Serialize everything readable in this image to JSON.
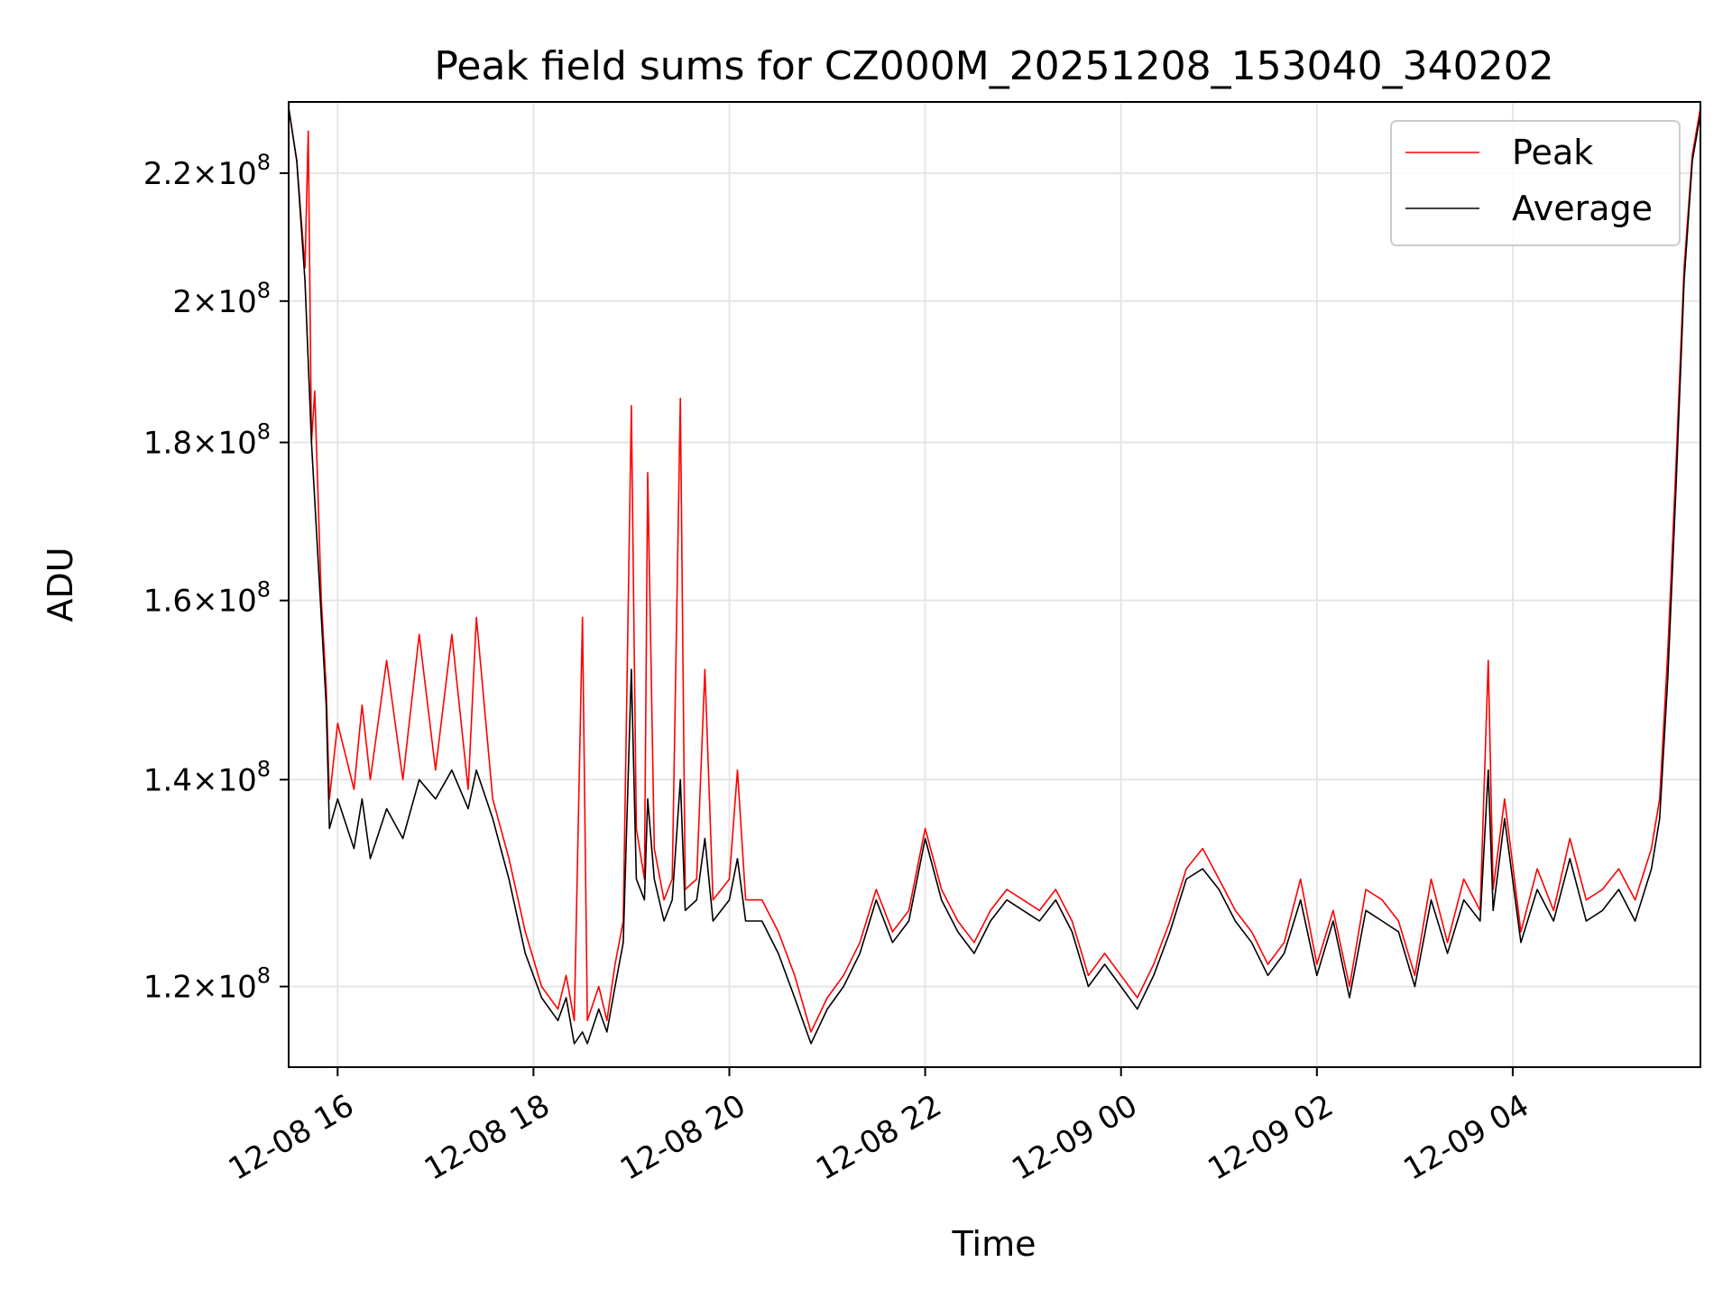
{
  "chart_data": {
    "type": "line",
    "title": "Peak field sums for CZ000M_20251208_153040_340202",
    "xlabel": "Time",
    "ylabel": "ADU",
    "yscale": "log",
    "ylim": [
      113000000,
      232000000
    ],
    "xlim": [
      "2025-12-08 15:30",
      "2025-12-09 05:55"
    ],
    "grid": true,
    "legend_position": "upper right",
    "x_ticks": [
      {
        "t": "2025-12-08 16:00",
        "label": "12-08 16"
      },
      {
        "t": "2025-12-08 18:00",
        "label": "12-08 18"
      },
      {
        "t": "2025-12-08 20:00",
        "label": "12-08 20"
      },
      {
        "t": "2025-12-08 22:00",
        "label": "12-08 22"
      },
      {
        "t": "2025-12-09 00:00",
        "label": "12-09 00"
      },
      {
        "t": "2025-12-09 02:00",
        "label": "12-09 02"
      },
      {
        "t": "2025-12-09 04:00",
        "label": "12-09 04"
      }
    ],
    "y_ticks": [
      {
        "value": 120000000,
        "mant": "1.2",
        "exp": "8"
      },
      {
        "value": 140000000,
        "mant": "1.4",
        "exp": "8"
      },
      {
        "value": 160000000,
        "mant": "1.6",
        "exp": "8"
      },
      {
        "value": 180000000,
        "mant": "1.8",
        "exp": "8"
      },
      {
        "value": 200000000,
        "mant": "2",
        "exp": "8"
      },
      {
        "value": 220000000,
        "mant": "2.2",
        "exp": "8"
      }
    ],
    "series": [
      {
        "name": "Peak",
        "color": "#ff0000",
        "points": [
          [
            "2025-12-08 15:30",
            231000000
          ],
          [
            "2025-12-08 15:35",
            222000000
          ],
          [
            "2025-12-08 15:40",
            205000000
          ],
          [
            "2025-12-08 15:42",
            227000000
          ],
          [
            "2025-12-08 15:44",
            180000000
          ],
          [
            "2025-12-08 15:46",
            187000000
          ],
          [
            "2025-12-08 15:50",
            160000000
          ],
          [
            "2025-12-08 15:53",
            150000000
          ],
          [
            "2025-12-08 15:55",
            138000000
          ],
          [
            "2025-12-08 16:00",
            146000000
          ],
          [
            "2025-12-08 16:10",
            139000000
          ],
          [
            "2025-12-08 16:15",
            148000000
          ],
          [
            "2025-12-08 16:20",
            140000000
          ],
          [
            "2025-12-08 16:30",
            153000000
          ],
          [
            "2025-12-08 16:40",
            140000000
          ],
          [
            "2025-12-08 16:50",
            156000000
          ],
          [
            "2025-12-08 17:00",
            141000000
          ],
          [
            "2025-12-08 17:10",
            156000000
          ],
          [
            "2025-12-08 17:20",
            139000000
          ],
          [
            "2025-12-08 17:25",
            158000000
          ],
          [
            "2025-12-08 17:35",
            138000000
          ],
          [
            "2025-12-08 17:45",
            132000000
          ],
          [
            "2025-12-08 17:55",
            125000000
          ],
          [
            "2025-12-08 18:05",
            120000000
          ],
          [
            "2025-12-08 18:15",
            118000000
          ],
          [
            "2025-12-08 18:20",
            121000000
          ],
          [
            "2025-12-08 18:25",
            117000000
          ],
          [
            "2025-12-08 18:30",
            158000000
          ],
          [
            "2025-12-08 18:33",
            117000000
          ],
          [
            "2025-12-08 18:40",
            120000000
          ],
          [
            "2025-12-08 18:45",
            117000000
          ],
          [
            "2025-12-08 18:50",
            122000000
          ],
          [
            "2025-12-08 18:55",
            126000000
          ],
          [
            "2025-12-08 19:00",
            185000000
          ],
          [
            "2025-12-08 19:03",
            135000000
          ],
          [
            "2025-12-08 19:08",
            130000000
          ],
          [
            "2025-12-08 19:10",
            176000000
          ],
          [
            "2025-12-08 19:14",
            133000000
          ],
          [
            "2025-12-08 19:20",
            128000000
          ],
          [
            "2025-12-08 19:25",
            130000000
          ],
          [
            "2025-12-08 19:30",
            186000000
          ],
          [
            "2025-12-08 19:33",
            129000000
          ],
          [
            "2025-12-08 19:40",
            130000000
          ],
          [
            "2025-12-08 19:45",
            152000000
          ],
          [
            "2025-12-08 19:50",
            128000000
          ],
          [
            "2025-12-08 20:00",
            130000000
          ],
          [
            "2025-12-08 20:05",
            141000000
          ],
          [
            "2025-12-08 20:10",
            128000000
          ],
          [
            "2025-12-08 20:20",
            128000000
          ],
          [
            "2025-12-08 20:30",
            125000000
          ],
          [
            "2025-12-08 20:40",
            121000000
          ],
          [
            "2025-12-08 20:50",
            116000000
          ],
          [
            "2025-12-08 21:00",
            119000000
          ],
          [
            "2025-12-08 21:10",
            121000000
          ],
          [
            "2025-12-08 21:20",
            124000000
          ],
          [
            "2025-12-08 21:30",
            129000000
          ],
          [
            "2025-12-08 21:40",
            125000000
          ],
          [
            "2025-12-08 21:50",
            127000000
          ],
          [
            "2025-12-08 22:00",
            135000000
          ],
          [
            "2025-12-08 22:10",
            129000000
          ],
          [
            "2025-12-08 22:20",
            126000000
          ],
          [
            "2025-12-08 22:30",
            124000000
          ],
          [
            "2025-12-08 22:40",
            127000000
          ],
          [
            "2025-12-08 22:50",
            129000000
          ],
          [
            "2025-12-08 23:00",
            128000000
          ],
          [
            "2025-12-08 23:10",
            127000000
          ],
          [
            "2025-12-08 23:20",
            129000000
          ],
          [
            "2025-12-08 23:30",
            126000000
          ],
          [
            "2025-12-08 23:40",
            121000000
          ],
          [
            "2025-12-08 23:50",
            123000000
          ],
          [
            "2025-12-09 00:00",
            121000000
          ],
          [
            "2025-12-09 00:10",
            119000000
          ],
          [
            "2025-12-09 00:20",
            122000000
          ],
          [
            "2025-12-09 00:30",
            126000000
          ],
          [
            "2025-12-09 00:40",
            131000000
          ],
          [
            "2025-12-09 00:50",
            133000000
          ],
          [
            "2025-12-09 01:00",
            130000000
          ],
          [
            "2025-12-09 01:10",
            127000000
          ],
          [
            "2025-12-09 01:20",
            125000000
          ],
          [
            "2025-12-09 01:30",
            122000000
          ],
          [
            "2025-12-09 01:40",
            124000000
          ],
          [
            "2025-12-09 01:50",
            130000000
          ],
          [
            "2025-12-09 02:00",
            122000000
          ],
          [
            "2025-12-09 02:10",
            127000000
          ],
          [
            "2025-12-09 02:20",
            120000000
          ],
          [
            "2025-12-09 02:30",
            129000000
          ],
          [
            "2025-12-09 02:40",
            128000000
          ],
          [
            "2025-12-09 02:50",
            126000000
          ],
          [
            "2025-12-09 03:00",
            121000000
          ],
          [
            "2025-12-09 03:10",
            130000000
          ],
          [
            "2025-12-09 03:20",
            124000000
          ],
          [
            "2025-12-09 03:30",
            130000000
          ],
          [
            "2025-12-09 03:40",
            127000000
          ],
          [
            "2025-12-09 03:45",
            153000000
          ],
          [
            "2025-12-09 03:48",
            129000000
          ],
          [
            "2025-12-09 03:55",
            138000000
          ],
          [
            "2025-12-09 04:05",
            125000000
          ],
          [
            "2025-12-09 04:15",
            131000000
          ],
          [
            "2025-12-09 04:25",
            127000000
          ],
          [
            "2025-12-09 04:35",
            134000000
          ],
          [
            "2025-12-09 04:45",
            128000000
          ],
          [
            "2025-12-09 04:55",
            129000000
          ],
          [
            "2025-12-09 05:05",
            131000000
          ],
          [
            "2025-12-09 05:15",
            128000000
          ],
          [
            "2025-12-09 05:25",
            133000000
          ],
          [
            "2025-12-09 05:30",
            138000000
          ],
          [
            "2025-12-09 05:35",
            154000000
          ],
          [
            "2025-12-09 05:40",
            177000000
          ],
          [
            "2025-12-09 05:45",
            205000000
          ],
          [
            "2025-12-09 05:50",
            223000000
          ],
          [
            "2025-12-09 05:55",
            231000000
          ]
        ]
      },
      {
        "name": "Average",
        "color": "#000000",
        "points": [
          [
            "2025-12-08 15:30",
            231000000
          ],
          [
            "2025-12-08 15:35",
            222000000
          ],
          [
            "2025-12-08 15:40",
            203000000
          ],
          [
            "2025-12-08 15:44",
            180000000
          ],
          [
            "2025-12-08 15:50",
            158000000
          ],
          [
            "2025-12-08 15:53",
            148000000
          ],
          [
            "2025-12-08 15:55",
            135000000
          ],
          [
            "2025-12-08 16:00",
            138000000
          ],
          [
            "2025-12-08 16:10",
            133000000
          ],
          [
            "2025-12-08 16:15",
            138000000
          ],
          [
            "2025-12-08 16:20",
            132000000
          ],
          [
            "2025-12-08 16:30",
            137000000
          ],
          [
            "2025-12-08 16:40",
            134000000
          ],
          [
            "2025-12-08 16:50",
            140000000
          ],
          [
            "2025-12-08 17:00",
            138000000
          ],
          [
            "2025-12-08 17:10",
            141000000
          ],
          [
            "2025-12-08 17:20",
            137000000
          ],
          [
            "2025-12-08 17:25",
            141000000
          ],
          [
            "2025-12-08 17:35",
            136000000
          ],
          [
            "2025-12-08 17:45",
            130000000
          ],
          [
            "2025-12-08 17:55",
            123000000
          ],
          [
            "2025-12-08 18:05",
            119000000
          ],
          [
            "2025-12-08 18:15",
            117000000
          ],
          [
            "2025-12-08 18:20",
            119000000
          ],
          [
            "2025-12-08 18:25",
            115000000
          ],
          [
            "2025-12-08 18:30",
            116000000
          ],
          [
            "2025-12-08 18:33",
            115000000
          ],
          [
            "2025-12-08 18:40",
            118000000
          ],
          [
            "2025-12-08 18:45",
            116000000
          ],
          [
            "2025-12-08 18:50",
            120000000
          ],
          [
            "2025-12-08 18:55",
            124000000
          ],
          [
            "2025-12-08 19:00",
            152000000
          ],
          [
            "2025-12-08 19:03",
            130000000
          ],
          [
            "2025-12-08 19:08",
            128000000
          ],
          [
            "2025-12-08 19:10",
            138000000
          ],
          [
            "2025-12-08 19:14",
            130000000
          ],
          [
            "2025-12-08 19:20",
            126000000
          ],
          [
            "2025-12-08 19:25",
            128000000
          ],
          [
            "2025-12-08 19:30",
            140000000
          ],
          [
            "2025-12-08 19:33",
            127000000
          ],
          [
            "2025-12-08 19:40",
            128000000
          ],
          [
            "2025-12-08 19:45",
            134000000
          ],
          [
            "2025-12-08 19:50",
            126000000
          ],
          [
            "2025-12-08 20:00",
            128000000
          ],
          [
            "2025-12-08 20:05",
            132000000
          ],
          [
            "2025-12-08 20:10",
            126000000
          ],
          [
            "2025-12-08 20:20",
            126000000
          ],
          [
            "2025-12-08 20:30",
            123000000
          ],
          [
            "2025-12-08 20:40",
            119000000
          ],
          [
            "2025-12-08 20:50",
            115000000
          ],
          [
            "2025-12-08 21:00",
            118000000
          ],
          [
            "2025-12-08 21:10",
            120000000
          ],
          [
            "2025-12-08 21:20",
            123000000
          ],
          [
            "2025-12-08 21:30",
            128000000
          ],
          [
            "2025-12-08 21:40",
            124000000
          ],
          [
            "2025-12-08 21:50",
            126000000
          ],
          [
            "2025-12-08 22:00",
            134000000
          ],
          [
            "2025-12-08 22:10",
            128000000
          ],
          [
            "2025-12-08 22:20",
            125000000
          ],
          [
            "2025-12-08 22:30",
            123000000
          ],
          [
            "2025-12-08 22:40",
            126000000
          ],
          [
            "2025-12-08 22:50",
            128000000
          ],
          [
            "2025-12-08 23:00",
            127000000
          ],
          [
            "2025-12-08 23:10",
            126000000
          ],
          [
            "2025-12-08 23:20",
            128000000
          ],
          [
            "2025-12-08 23:30",
            125000000
          ],
          [
            "2025-12-08 23:40",
            120000000
          ],
          [
            "2025-12-08 23:50",
            122000000
          ],
          [
            "2025-12-09 00:00",
            120000000
          ],
          [
            "2025-12-09 00:10",
            118000000
          ],
          [
            "2025-12-09 00:20",
            121000000
          ],
          [
            "2025-12-09 00:30",
            125000000
          ],
          [
            "2025-12-09 00:40",
            130000000
          ],
          [
            "2025-12-09 00:50",
            131000000
          ],
          [
            "2025-12-09 01:00",
            129000000
          ],
          [
            "2025-12-09 01:10",
            126000000
          ],
          [
            "2025-12-09 01:20",
            124000000
          ],
          [
            "2025-12-09 01:30",
            121000000
          ],
          [
            "2025-12-09 01:40",
            123000000
          ],
          [
            "2025-12-09 01:50",
            128000000
          ],
          [
            "2025-12-09 02:00",
            121000000
          ],
          [
            "2025-12-09 02:10",
            126000000
          ],
          [
            "2025-12-09 02:20",
            119000000
          ],
          [
            "2025-12-09 02:30",
            127000000
          ],
          [
            "2025-12-09 02:40",
            126000000
          ],
          [
            "2025-12-09 02:50",
            125000000
          ],
          [
            "2025-12-09 03:00",
            120000000
          ],
          [
            "2025-12-09 03:10",
            128000000
          ],
          [
            "2025-12-09 03:20",
            123000000
          ],
          [
            "2025-12-09 03:30",
            128000000
          ],
          [
            "2025-12-09 03:40",
            126000000
          ],
          [
            "2025-12-09 03:45",
            141000000
          ],
          [
            "2025-12-09 03:48",
            127000000
          ],
          [
            "2025-12-09 03:55",
            136000000
          ],
          [
            "2025-12-09 04:05",
            124000000
          ],
          [
            "2025-12-09 04:15",
            129000000
          ],
          [
            "2025-12-09 04:25",
            126000000
          ],
          [
            "2025-12-09 04:35",
            132000000
          ],
          [
            "2025-12-09 04:45",
            126000000
          ],
          [
            "2025-12-09 04:55",
            127000000
          ],
          [
            "2025-12-09 05:05",
            129000000
          ],
          [
            "2025-12-09 05:15",
            126000000
          ],
          [
            "2025-12-09 05:25",
            131000000
          ],
          [
            "2025-12-09 05:30",
            136000000
          ],
          [
            "2025-12-09 05:35",
            151000000
          ],
          [
            "2025-12-09 05:40",
            174000000
          ],
          [
            "2025-12-09 05:45",
            203000000
          ],
          [
            "2025-12-09 05:50",
            222000000
          ],
          [
            "2025-12-09 05:55",
            230000000
          ]
        ]
      }
    ]
  }
}
